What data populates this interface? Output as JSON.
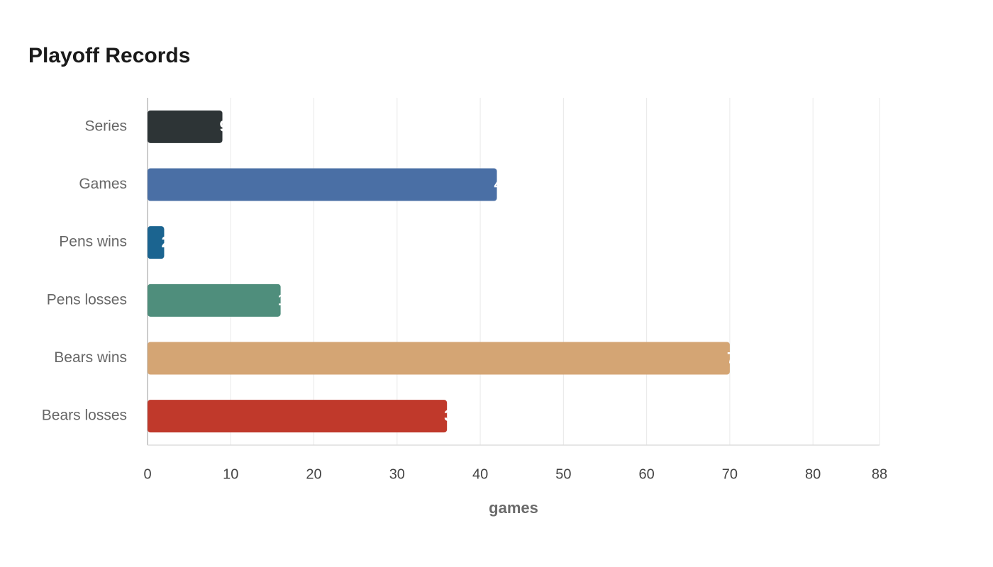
{
  "chart_data": {
    "type": "bar",
    "orientation": "horizontal",
    "title": "Playoff Records",
    "categories": [
      "Series",
      "Games",
      "Pens wins",
      "Pens losses",
      "Bears wins",
      "Bears losses"
    ],
    "values": [
      9,
      42,
      2,
      16,
      70,
      36
    ],
    "colors": [
      "#2d3436",
      "#4a6fa5",
      "#1b6490",
      "#4f8e7c",
      "#d4a574",
      "#c0392b"
    ],
    "x_label": "games",
    "xlim": [
      0,
      88
    ],
    "xticks": [
      0,
      10,
      20,
      30,
      40,
      50,
      60,
      70,
      80,
      88
    ],
    "grid": true
  }
}
